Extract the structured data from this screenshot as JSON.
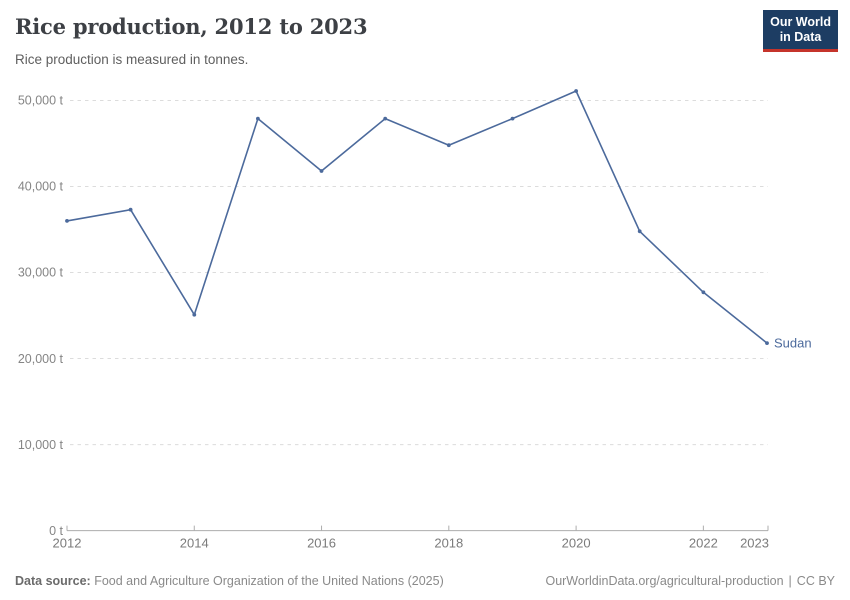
{
  "header": {
    "title": "Rice production, 2012 to 2023",
    "subtitle": "Rice production is measured in tonnes.",
    "logo": {
      "line1": "Our World",
      "line2": "in Data"
    }
  },
  "colors": {
    "brand_navy": "#1d3d63",
    "brand_red": "#c5342b",
    "series_blue": "#4c6a9c",
    "gridline_gray": "#dcdcdc",
    "axis_gray": "#adadad"
  },
  "chart_data": {
    "type": "line",
    "title": "Rice production, 2012 to 2023",
    "subtitle": "Rice production is measured in tonnes.",
    "xlabel": "",
    "ylabel": "",
    "unit": "tonnes",
    "xlim": [
      2012,
      2023
    ],
    "ylim": [
      0,
      52000
    ],
    "grid": "dashed-horizontal",
    "legend": "entity-label-at-line-end",
    "x_ticks": [
      2012,
      2014,
      2016,
      2018,
      2020,
      2022,
      2023
    ],
    "y_ticks": [
      0,
      10000,
      20000,
      30000,
      40000,
      50000
    ],
    "y_tick_suffix": " t",
    "series": [
      {
        "name": "Sudan",
        "color": "#4c6a9c",
        "x": [
          2012,
          2013,
          2014,
          2015,
          2016,
          2017,
          2018,
          2019,
          2020,
          2021,
          2022,
          2023
        ],
        "values": [
          36000,
          37300,
          25100,
          47900,
          41800,
          47900,
          44800,
          47900,
          51100,
          34800,
          27700,
          21800
        ]
      }
    ]
  },
  "footer": {
    "source_label": "Data source:",
    "source_text": "Food and Agriculture Organization of the United Nations (2025)",
    "link_text": "OurWorldinData.org/agricultural-production",
    "separator": "|",
    "license_text": "CC BY"
  }
}
